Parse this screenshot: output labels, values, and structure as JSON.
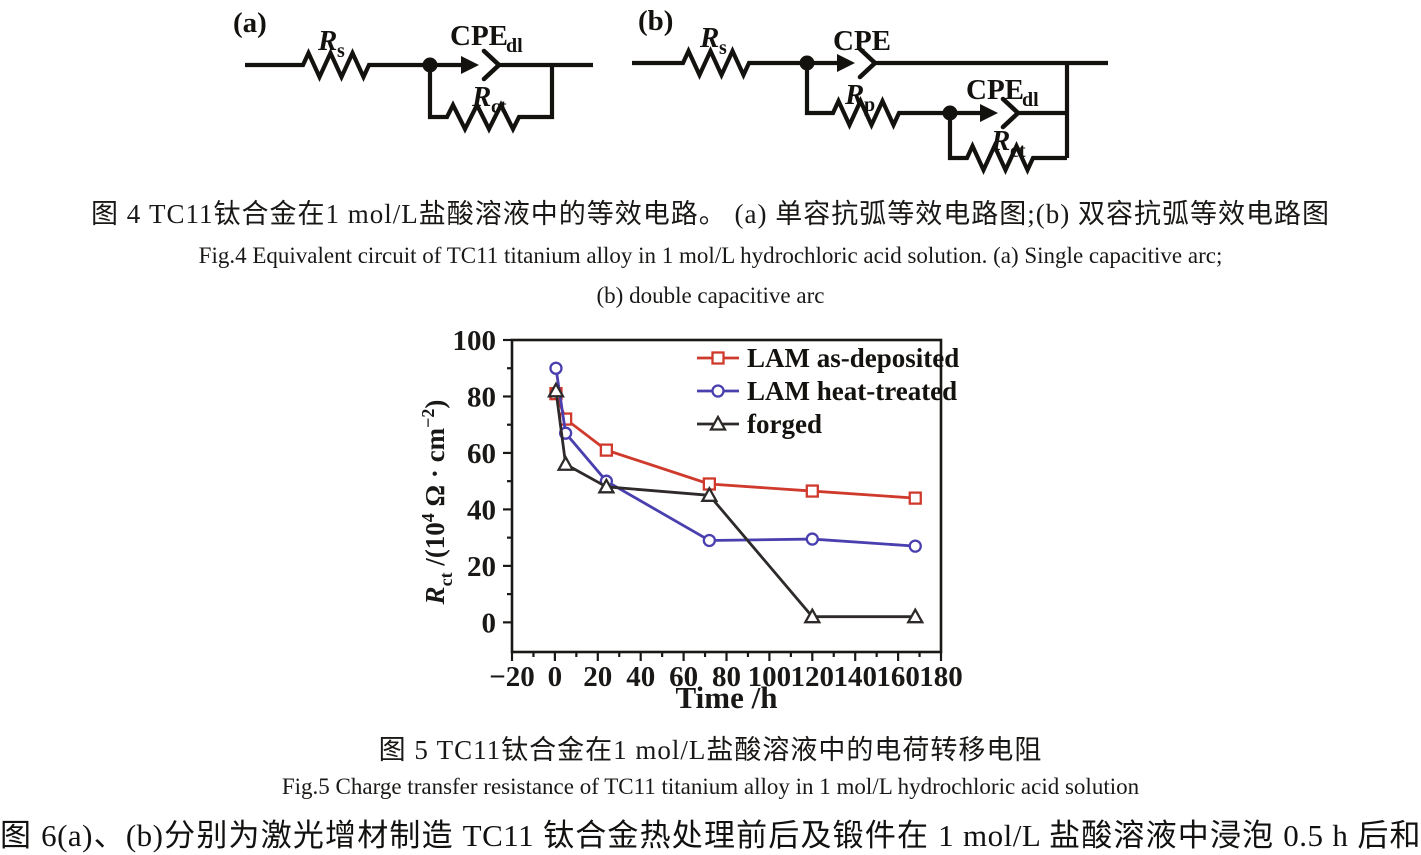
{
  "page": {
    "background": "#ffffff"
  },
  "figure4": {
    "tag_a": "(a)",
    "tag_b": "(b)",
    "labels": {
      "r": "R",
      "sub_s": "s",
      "cpe": "CPE",
      "sub_dl": "dl",
      "sub_ct": "ct",
      "sub_p": "p"
    },
    "caption_zh": "图 4  TC11钛合金在1 mol/L盐酸溶液中的等效电路。 (a) 单容抗弧等效电路图;(b) 双容抗弧等效电路图",
    "caption_en_1": "Fig.4  Equivalent circuit of TC11 titanium alloy in 1 mol/L hydrochloric acid solution. (a) Single capacitive arc;",
    "caption_en_2": "(b) double capacitive arc"
  },
  "figure5": {
    "caption_zh": "图 5  TC11钛合金在1 mol/L盐酸溶液中的电荷转移电阻",
    "caption_en": "Fig.5  Charge transfer resistance of TC11 titanium alloy in 1 mol/L hydrochloric acid solution"
  },
  "body_text": "图 6(a)、(b)分别为激光增材制造 TC11 钛合金热处理前后及锻件在 1 mol/L 盐酸溶液中浸泡 0.5 h 后和",
  "chart_data": {
    "type": "line",
    "title": "",
    "xlabel": "Time /h",
    "ylabel": "Rct /(10^4 Ω·cm^-2)",
    "ylabel_parts": [
      {
        "t": "R",
        "style": "italic"
      },
      {
        "t": "ct",
        "script": "sub"
      },
      {
        "t": " /(10"
      },
      {
        "t": "4",
        "script": "sup"
      },
      {
        "t": " Ω · cm"
      },
      {
        "t": "−2",
        "script": "sup"
      },
      {
        "t": ")"
      }
    ],
    "xlim": [
      -20,
      180
    ],
    "ylim": [
      -10.5,
      100
    ],
    "xticks": [
      -20,
      0,
      20,
      40,
      60,
      80,
      100,
      120,
      140,
      160,
      180
    ],
    "yticks": [
      0,
      20,
      40,
      60,
      80,
      100
    ],
    "minor_tick_step_x": 10,
    "minor_tick_step_y": 10,
    "grid": false,
    "legend_position": "top-right",
    "axis_color": "#1a1816",
    "series": [
      {
        "name": "LAM as-deposited",
        "marker": "square",
        "color": "#cf3a2d",
        "x": [
          0.5,
          5,
          24,
          72,
          120,
          168
        ],
        "y": [
          81,
          72,
          61,
          49,
          46.5,
          44
        ]
      },
      {
        "name": "LAM heat-treated",
        "marker": "circle",
        "color": "#4a3fae",
        "x": [
          0.5,
          5,
          24,
          72,
          120,
          168
        ],
        "y": [
          90,
          67,
          50,
          29,
          29.5,
          27
        ]
      },
      {
        "name": "forged",
        "marker": "triangle",
        "color": "#2e2a29",
        "x": [
          0.5,
          5,
          24,
          72,
          120,
          168
        ],
        "y": [
          82,
          56,
          48,
          45,
          2,
          2
        ]
      }
    ]
  }
}
